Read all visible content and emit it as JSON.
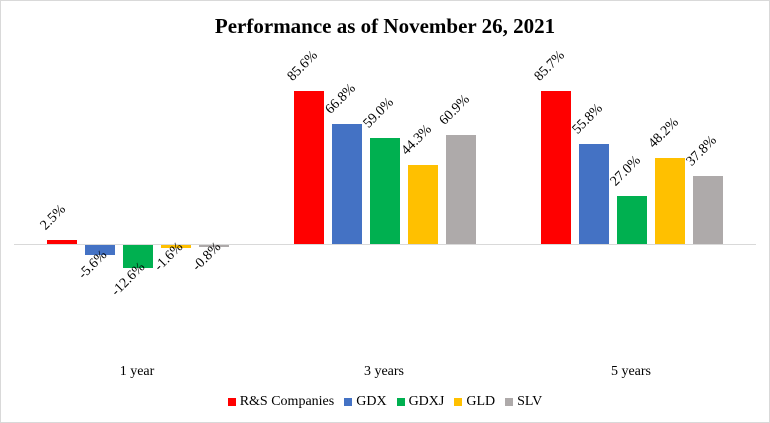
{
  "chart_data": {
    "type": "bar",
    "title": "Performance as of November 26, 2021",
    "categories": [
      "1 year",
      "3 years",
      "5 years"
    ],
    "series": [
      {
        "name": "R&S Companies",
        "color": "#FF0000",
        "values": [
          2.5,
          85.6,
          85.7
        ],
        "labels": [
          "2.5%",
          "85.6%",
          "85.7%"
        ]
      },
      {
        "name": "GDX",
        "color": "#4472C4",
        "values": [
          -5.6,
          66.8,
          55.8
        ],
        "labels": [
          "-5.6%",
          "66.8%",
          "55.8%"
        ]
      },
      {
        "name": "GDXJ",
        "color": "#00B050",
        "values": [
          -12.6,
          59.0,
          27.0
        ],
        "labels": [
          "-12.6%",
          "59.0%",
          "27.0%"
        ]
      },
      {
        "name": "GLD",
        "color": "#FFC000",
        "values": [
          -1.6,
          44.3,
          48.2
        ],
        "labels": [
          "-1.6%",
          "44.3%",
          "48.2%"
        ]
      },
      {
        "name": "SLV",
        "color": "#AEAAAA",
        "values": [
          -0.8,
          60.9,
          37.8
        ],
        "labels": [
          "-0.8%",
          "60.9%",
          "37.8%"
        ]
      }
    ],
    "xlabel": "",
    "ylabel": "",
    "grid": false,
    "legend_position": "bottom",
    "data_labels": true
  }
}
